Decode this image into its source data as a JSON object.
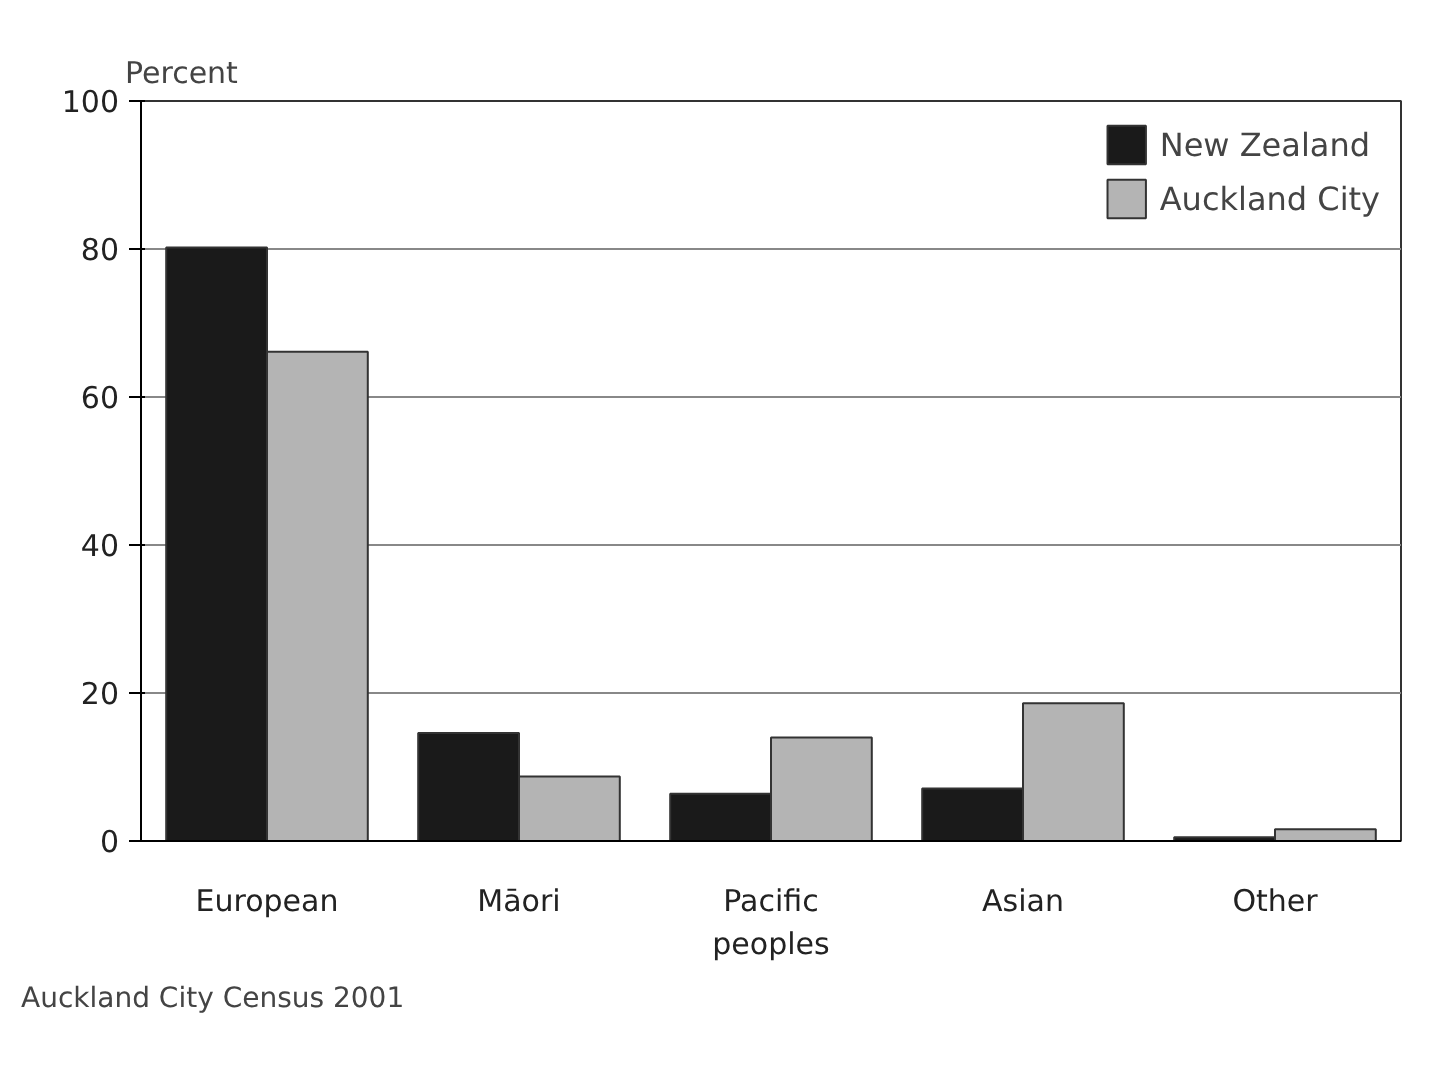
{
  "chart_data": {
    "type": "bar",
    "ylabel": "Percent",
    "categories": [
      "European",
      "Māori",
      "Pacific peoples",
      "Asian",
      "Other"
    ],
    "series": [
      {
        "name": "New Zealand",
        "color": "#1a1a1a",
        "values": [
          80.2,
          14.6,
          6.4,
          7.1,
          0.5
        ]
      },
      {
        "name": "Auckland City",
        "color": "#b4b4b4",
        "values": [
          66.1,
          8.7,
          14.0,
          18.6,
          1.6
        ]
      }
    ],
    "ylim": [
      0,
      100
    ],
    "yticks": [
      0,
      20,
      40,
      60,
      80,
      100
    ],
    "grid": "y",
    "legend": "top right",
    "annotations": [
      "Auckland City Census 2001"
    ]
  }
}
